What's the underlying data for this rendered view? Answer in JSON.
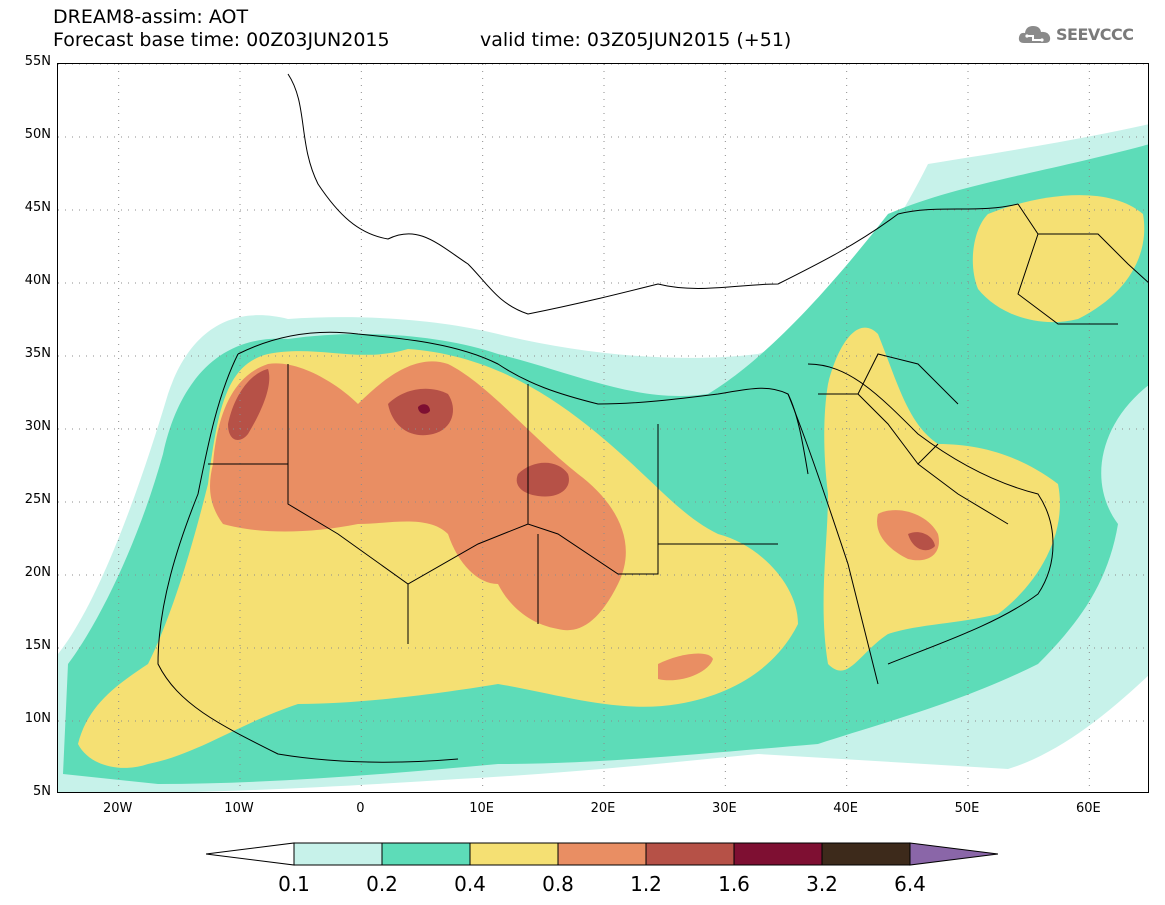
{
  "header": {
    "line1": "DREAM8-assim: AOT",
    "line2": "Forecast base time: 00Z03JUN2015",
    "valid": "valid time: 03Z05JUN2015 (+51)"
  },
  "logo": {
    "text": "SEEVCCC",
    "icon": "cloud-icon"
  },
  "map": {
    "lon_range": [
      -25,
      65
    ],
    "lat_range": [
      5,
      55
    ],
    "lat_labels": [
      "55N",
      "50N",
      "45N",
      "40N",
      "35N",
      "30N",
      "25N",
      "20N",
      "15N",
      "10N",
      "5N"
    ],
    "lat_values": [
      55,
      50,
      45,
      40,
      35,
      30,
      25,
      20,
      15,
      10,
      5
    ],
    "lon_labels": [
      "20W",
      "10W",
      "0",
      "10E",
      "20E",
      "30E",
      "40E",
      "50E",
      "60E"
    ],
    "lon_values": [
      -20,
      -10,
      0,
      10,
      20,
      30,
      40,
      50,
      60
    ],
    "grid": true
  },
  "colorbar": {
    "labels": [
      "0.1",
      "0.2",
      "0.4",
      "0.8",
      "1.2",
      "1.6",
      "3.2",
      "6.4"
    ],
    "colors": [
      "#c7f2ea",
      "#5ddcb8",
      "#f5e073",
      "#e98e63",
      "#b65147",
      "#7e0f32",
      "#3d2a1b"
    ],
    "under_color": "#ffffff",
    "over_color": "#8a66a8"
  },
  "palette": {
    "c1": "#c7f2ea",
    "c2": "#5ddcb8",
    "c3": "#f5e073",
    "c4": "#e98e63",
    "c5": "#b65147",
    "c6": "#7e0f32"
  }
}
